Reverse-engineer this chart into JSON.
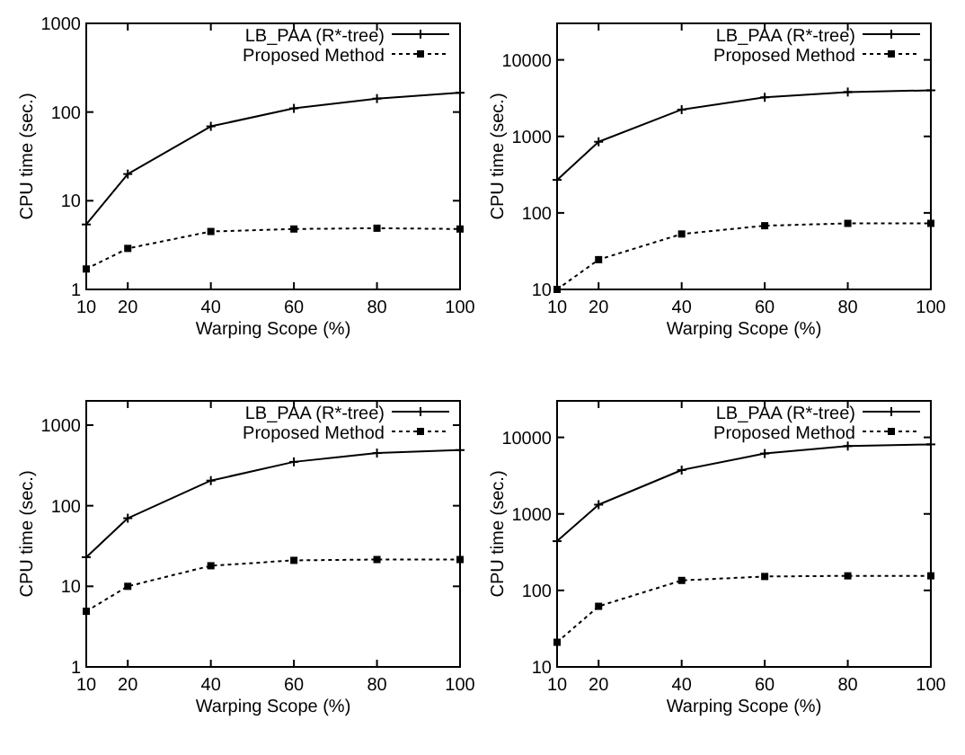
{
  "chart_data": [
    {
      "type": "line",
      "xlabel": "Warping Scope (%)",
      "ylabel": "CPU time (sec.)",
      "log": true,
      "legend": "top right",
      "grid": false,
      "x": [
        10,
        20,
        40,
        60,
        80,
        100
      ],
      "xlim": [
        10,
        100
      ],
      "xticks": [
        10,
        20,
        40,
        60,
        80,
        100
      ],
      "ylim": [
        1,
        1000
      ],
      "yticks": [
        1,
        10,
        100,
        1000
      ],
      "series": [
        {
          "name": "LB_PAA (R*-tree)",
          "color": "#000000",
          "marker": "cross",
          "line_style": "solid",
          "values": [
            5.4,
            20,
            69,
            110,
            142,
            165
          ]
        },
        {
          "name": "Proposed Method",
          "color": "#000000",
          "marker": "square",
          "line_style": "dotted",
          "values": [
            1.7,
            2.9,
            4.5,
            4.8,
            4.9,
            4.8
          ]
        }
      ]
    },
    {
      "type": "line",
      "xlabel": "Warping Scope (%)",
      "ylabel": "CPU time (sec.)",
      "log": true,
      "legend": "top right",
      "grid": false,
      "x": [
        10,
        20,
        40,
        60,
        80,
        100
      ],
      "xlim": [
        10,
        100
      ],
      "xticks": [
        10,
        20,
        40,
        60,
        80,
        100
      ],
      "ylim": [
        10,
        30000
      ],
      "yticks": [
        10,
        100,
        1000,
        10000
      ],
      "series": [
        {
          "name": "LB_PAA (R*-tree)",
          "color": "#000000",
          "marker": "cross",
          "line_style": "solid",
          "values": [
            270,
            850,
            2240,
            3240,
            3800,
            4000
          ]
        },
        {
          "name": "Proposed Method",
          "color": "#000000",
          "marker": "square",
          "line_style": "dotted",
          "values": [
            10,
            24.5,
            53,
            68,
            73,
            73
          ]
        }
      ]
    },
    {
      "type": "line",
      "xlabel": "Warping Scope (%)",
      "ylabel": "CPU time (sec.)",
      "log": true,
      "legend": "top right",
      "grid": false,
      "x": [
        10,
        20,
        40,
        60,
        80,
        100
      ],
      "xlim": [
        10,
        100
      ],
      "xticks": [
        10,
        20,
        40,
        60,
        80,
        100
      ],
      "ylim": [
        1,
        2000
      ],
      "yticks": [
        1,
        10,
        100,
        1000
      ],
      "series": [
        {
          "name": "LB_PAA (R*-tree)",
          "color": "#000000",
          "marker": "cross",
          "line_style": "solid",
          "values": [
            23,
            70,
            205,
            350,
            450,
            490
          ]
        },
        {
          "name": "Proposed Method",
          "color": "#000000",
          "marker": "square",
          "line_style": "dotted",
          "values": [
            4.9,
            10,
            18,
            21,
            21.5,
            21.5
          ]
        }
      ]
    },
    {
      "type": "line",
      "xlabel": "Warping Scope (%)",
      "ylabel": "CPU time (sec.)",
      "log": true,
      "legend": "top right",
      "grid": false,
      "x": [
        10,
        20,
        40,
        60,
        80,
        100
      ],
      "xlim": [
        10,
        100
      ],
      "xticks": [
        10,
        20,
        40,
        60,
        80,
        100
      ],
      "ylim": [
        10,
        30000
      ],
      "yticks": [
        10,
        100,
        1000,
        10000
      ],
      "series": [
        {
          "name": "LB_PAA (R*-tree)",
          "color": "#000000",
          "marker": "cross",
          "line_style": "solid",
          "values": [
            440,
            1320,
            3740,
            6150,
            7700,
            8100
          ]
        },
        {
          "name": "Proposed Method",
          "color": "#000000",
          "marker": "square",
          "line_style": "dotted",
          "values": [
            21,
            62,
            135,
            152,
            155,
            155
          ]
        }
      ]
    }
  ]
}
